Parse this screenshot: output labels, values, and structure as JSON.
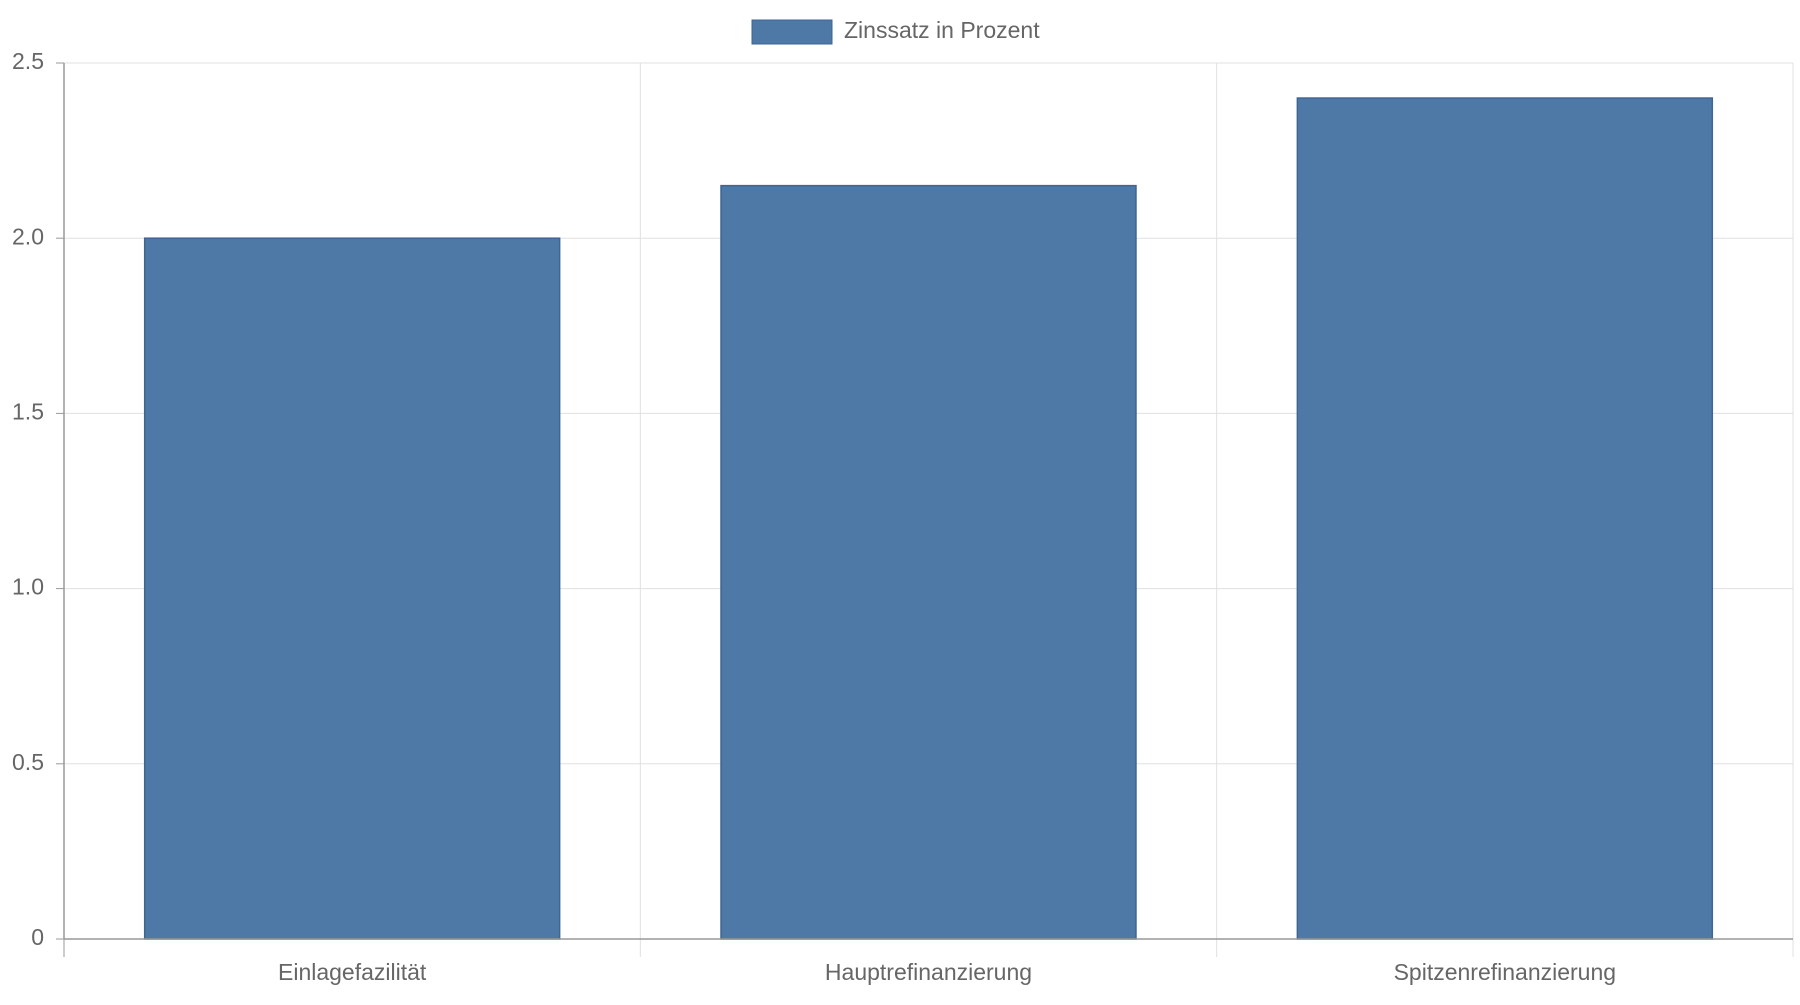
{
  "chart_data": {
    "type": "bar",
    "categories": [
      "Einlagefazilität",
      "Hauptrefinanzierung",
      "Spitzenrefinanzierung"
    ],
    "series": [
      {
        "name": "Zinssatz in Prozent",
        "color": "#4e78a6",
        "values": [
          2.0,
          2.15,
          2.4
        ]
      }
    ],
    "ylim": [
      0,
      2.5
    ],
    "yticks": [
      0,
      0.5,
      {
        "value": 1,
        "label": "1.0"
      },
      1.5,
      {
        "value": 2,
        "label": "2.0"
      },
      2.5
    ],
    "grid": true,
    "legend": "top"
  }
}
